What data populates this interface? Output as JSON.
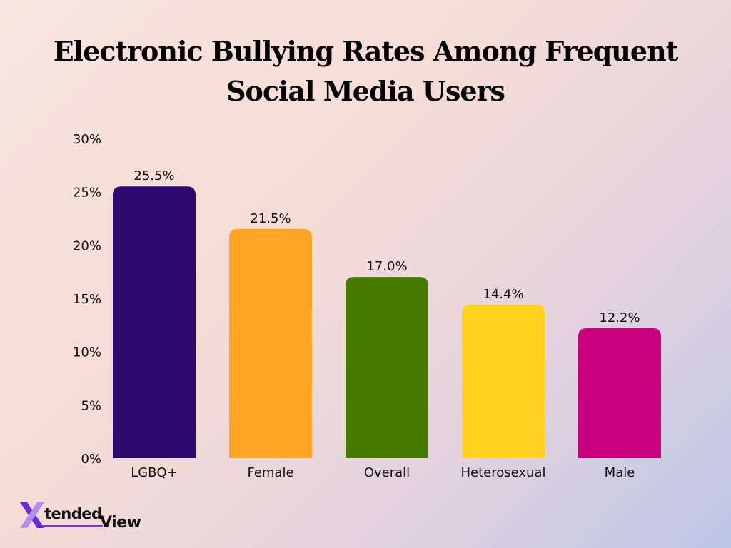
{
  "chart_data": {
    "type": "bar",
    "title_lines": [
      "Electronic Bullying Rates Among Frequent",
      "Social Media Users"
    ],
    "categories": [
      "LGBQ+",
      "Female",
      "Overall",
      "Heterosexual",
      "Male"
    ],
    "values": [
      25.5,
      21.5,
      17.0,
      14.4,
      12.2
    ],
    "value_labels": [
      "25.5%",
      "21.5%",
      "17.0%",
      "14.4%",
      "12.2%"
    ],
    "colors": [
      "#2d0a6e",
      "#ffa424",
      "#467a00",
      "#ffd21f",
      "#c8007e"
    ],
    "ylim": [
      0,
      30
    ],
    "yticks": [
      0,
      5,
      10,
      15,
      20,
      25,
      30
    ],
    "ytick_labels": [
      "0%",
      "5%",
      "10%",
      "15%",
      "20%",
      "25%",
      "30%"
    ],
    "grid": false,
    "legend": false
  },
  "branding": {
    "logo_letter": "X",
    "logo_tended": "tended",
    "logo_view": "View",
    "logo_colors": [
      "#6a2bd0",
      "#b48cf0"
    ]
  }
}
